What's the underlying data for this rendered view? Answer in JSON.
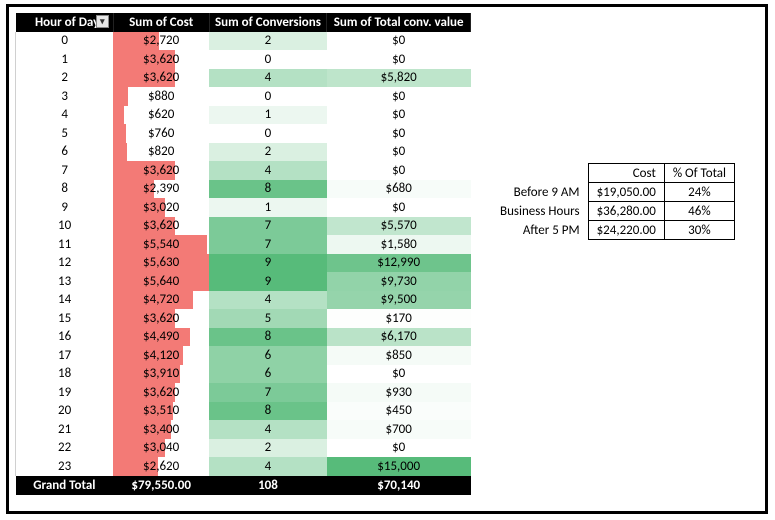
{
  "pivot": {
    "headers": [
      "Hour of Day",
      "Sum of Cost",
      "Sum of Conversions",
      "Sum of Total conv. value"
    ],
    "max_cost": 5640,
    "conv_scale": {
      "min": 0,
      "max": 9
    },
    "value_scale": {
      "min": 0,
      "max": 15000
    },
    "colors": {
      "cost_bar": "#f37a76",
      "heat_low": "#ffffff",
      "heat_high_conv": "#57bb7a",
      "heat_high_val": "#57bb7a",
      "header_bg": "#000000",
      "header_fg": "#ffffff"
    },
    "rows": [
      {
        "hour": "0",
        "cost": 2720,
        "cost_txt": "$2,720",
        "conv": 2,
        "val": 0,
        "val_txt": "$0"
      },
      {
        "hour": "1",
        "cost": 3620,
        "cost_txt": "$3,620",
        "conv": 0,
        "val": 0,
        "val_txt": "$0"
      },
      {
        "hour": "2",
        "cost": 3620,
        "cost_txt": "$3,620",
        "conv": 4,
        "val": 5820,
        "val_txt": "$5,820"
      },
      {
        "hour": "3",
        "cost": 880,
        "cost_txt": "$880",
        "conv": 0,
        "val": 0,
        "val_txt": "$0"
      },
      {
        "hour": "4",
        "cost": 620,
        "cost_txt": "$620",
        "conv": 1,
        "val": 0,
        "val_txt": "$0"
      },
      {
        "hour": "5",
        "cost": 760,
        "cost_txt": "$760",
        "conv": 0,
        "val": 0,
        "val_txt": "$0"
      },
      {
        "hour": "6",
        "cost": 820,
        "cost_txt": "$820",
        "conv": 2,
        "val": 0,
        "val_txt": "$0"
      },
      {
        "hour": "7",
        "cost": 3620,
        "cost_txt": "$3,620",
        "conv": 4,
        "val": 0,
        "val_txt": "$0"
      },
      {
        "hour": "8",
        "cost": 2390,
        "cost_txt": "$2,390",
        "conv": 8,
        "val": 680,
        "val_txt": "$680"
      },
      {
        "hour": "9",
        "cost": 3020,
        "cost_txt": "$3,020",
        "conv": 1,
        "val": 0,
        "val_txt": "$0"
      },
      {
        "hour": "10",
        "cost": 3620,
        "cost_txt": "$3,620",
        "conv": 7,
        "val": 5570,
        "val_txt": "$5,570"
      },
      {
        "hour": "11",
        "cost": 5540,
        "cost_txt": "$5,540",
        "conv": 7,
        "val": 1580,
        "val_txt": "$1,580"
      },
      {
        "hour": "12",
        "cost": 5630,
        "cost_txt": "$5,630",
        "conv": 9,
        "val": 12990,
        "val_txt": "$12,990"
      },
      {
        "hour": "13",
        "cost": 5640,
        "cost_txt": "$5,640",
        "conv": 9,
        "val": 9730,
        "val_txt": "$9,730"
      },
      {
        "hour": "14",
        "cost": 4720,
        "cost_txt": "$4,720",
        "conv": 4,
        "val": 9500,
        "val_txt": "$9,500"
      },
      {
        "hour": "15",
        "cost": 3620,
        "cost_txt": "$3,620",
        "conv": 5,
        "val": 170,
        "val_txt": "$170"
      },
      {
        "hour": "16",
        "cost": 4490,
        "cost_txt": "$4,490",
        "conv": 8,
        "val": 6170,
        "val_txt": "$6,170"
      },
      {
        "hour": "17",
        "cost": 4120,
        "cost_txt": "$4,120",
        "conv": 6,
        "val": 850,
        "val_txt": "$850"
      },
      {
        "hour": "18",
        "cost": 3910,
        "cost_txt": "$3,910",
        "conv": 6,
        "val": 0,
        "val_txt": "$0"
      },
      {
        "hour": "19",
        "cost": 3620,
        "cost_txt": "$3,620",
        "conv": 7,
        "val": 930,
        "val_txt": "$930"
      },
      {
        "hour": "20",
        "cost": 3510,
        "cost_txt": "$3,510",
        "conv": 8,
        "val": 450,
        "val_txt": "$450"
      },
      {
        "hour": "21",
        "cost": 3400,
        "cost_txt": "$3,400",
        "conv": 4,
        "val": 700,
        "val_txt": "$700"
      },
      {
        "hour": "22",
        "cost": 3040,
        "cost_txt": "$3,040",
        "conv": 2,
        "val": 0,
        "val_txt": "$0"
      },
      {
        "hour": "23",
        "cost": 2620,
        "cost_txt": "$2,620",
        "conv": 4,
        "val": 15000,
        "val_txt": "$15,000"
      }
    ],
    "grand_total": {
      "label": "Grand Total",
      "cost": "$79,550.00",
      "conv": "108",
      "val": "$70,140"
    }
  },
  "side": {
    "headers": [
      "",
      "Cost",
      "% Of Total"
    ],
    "rows": [
      {
        "label": "Before 9 AM",
        "cost": "$19,050.00",
        "pct": "24%"
      },
      {
        "label": "Business Hours",
        "cost": "$36,280.00",
        "pct": "46%"
      },
      {
        "label": "After 5 PM",
        "cost": "$24,220.00",
        "pct": "30%"
      }
    ]
  }
}
